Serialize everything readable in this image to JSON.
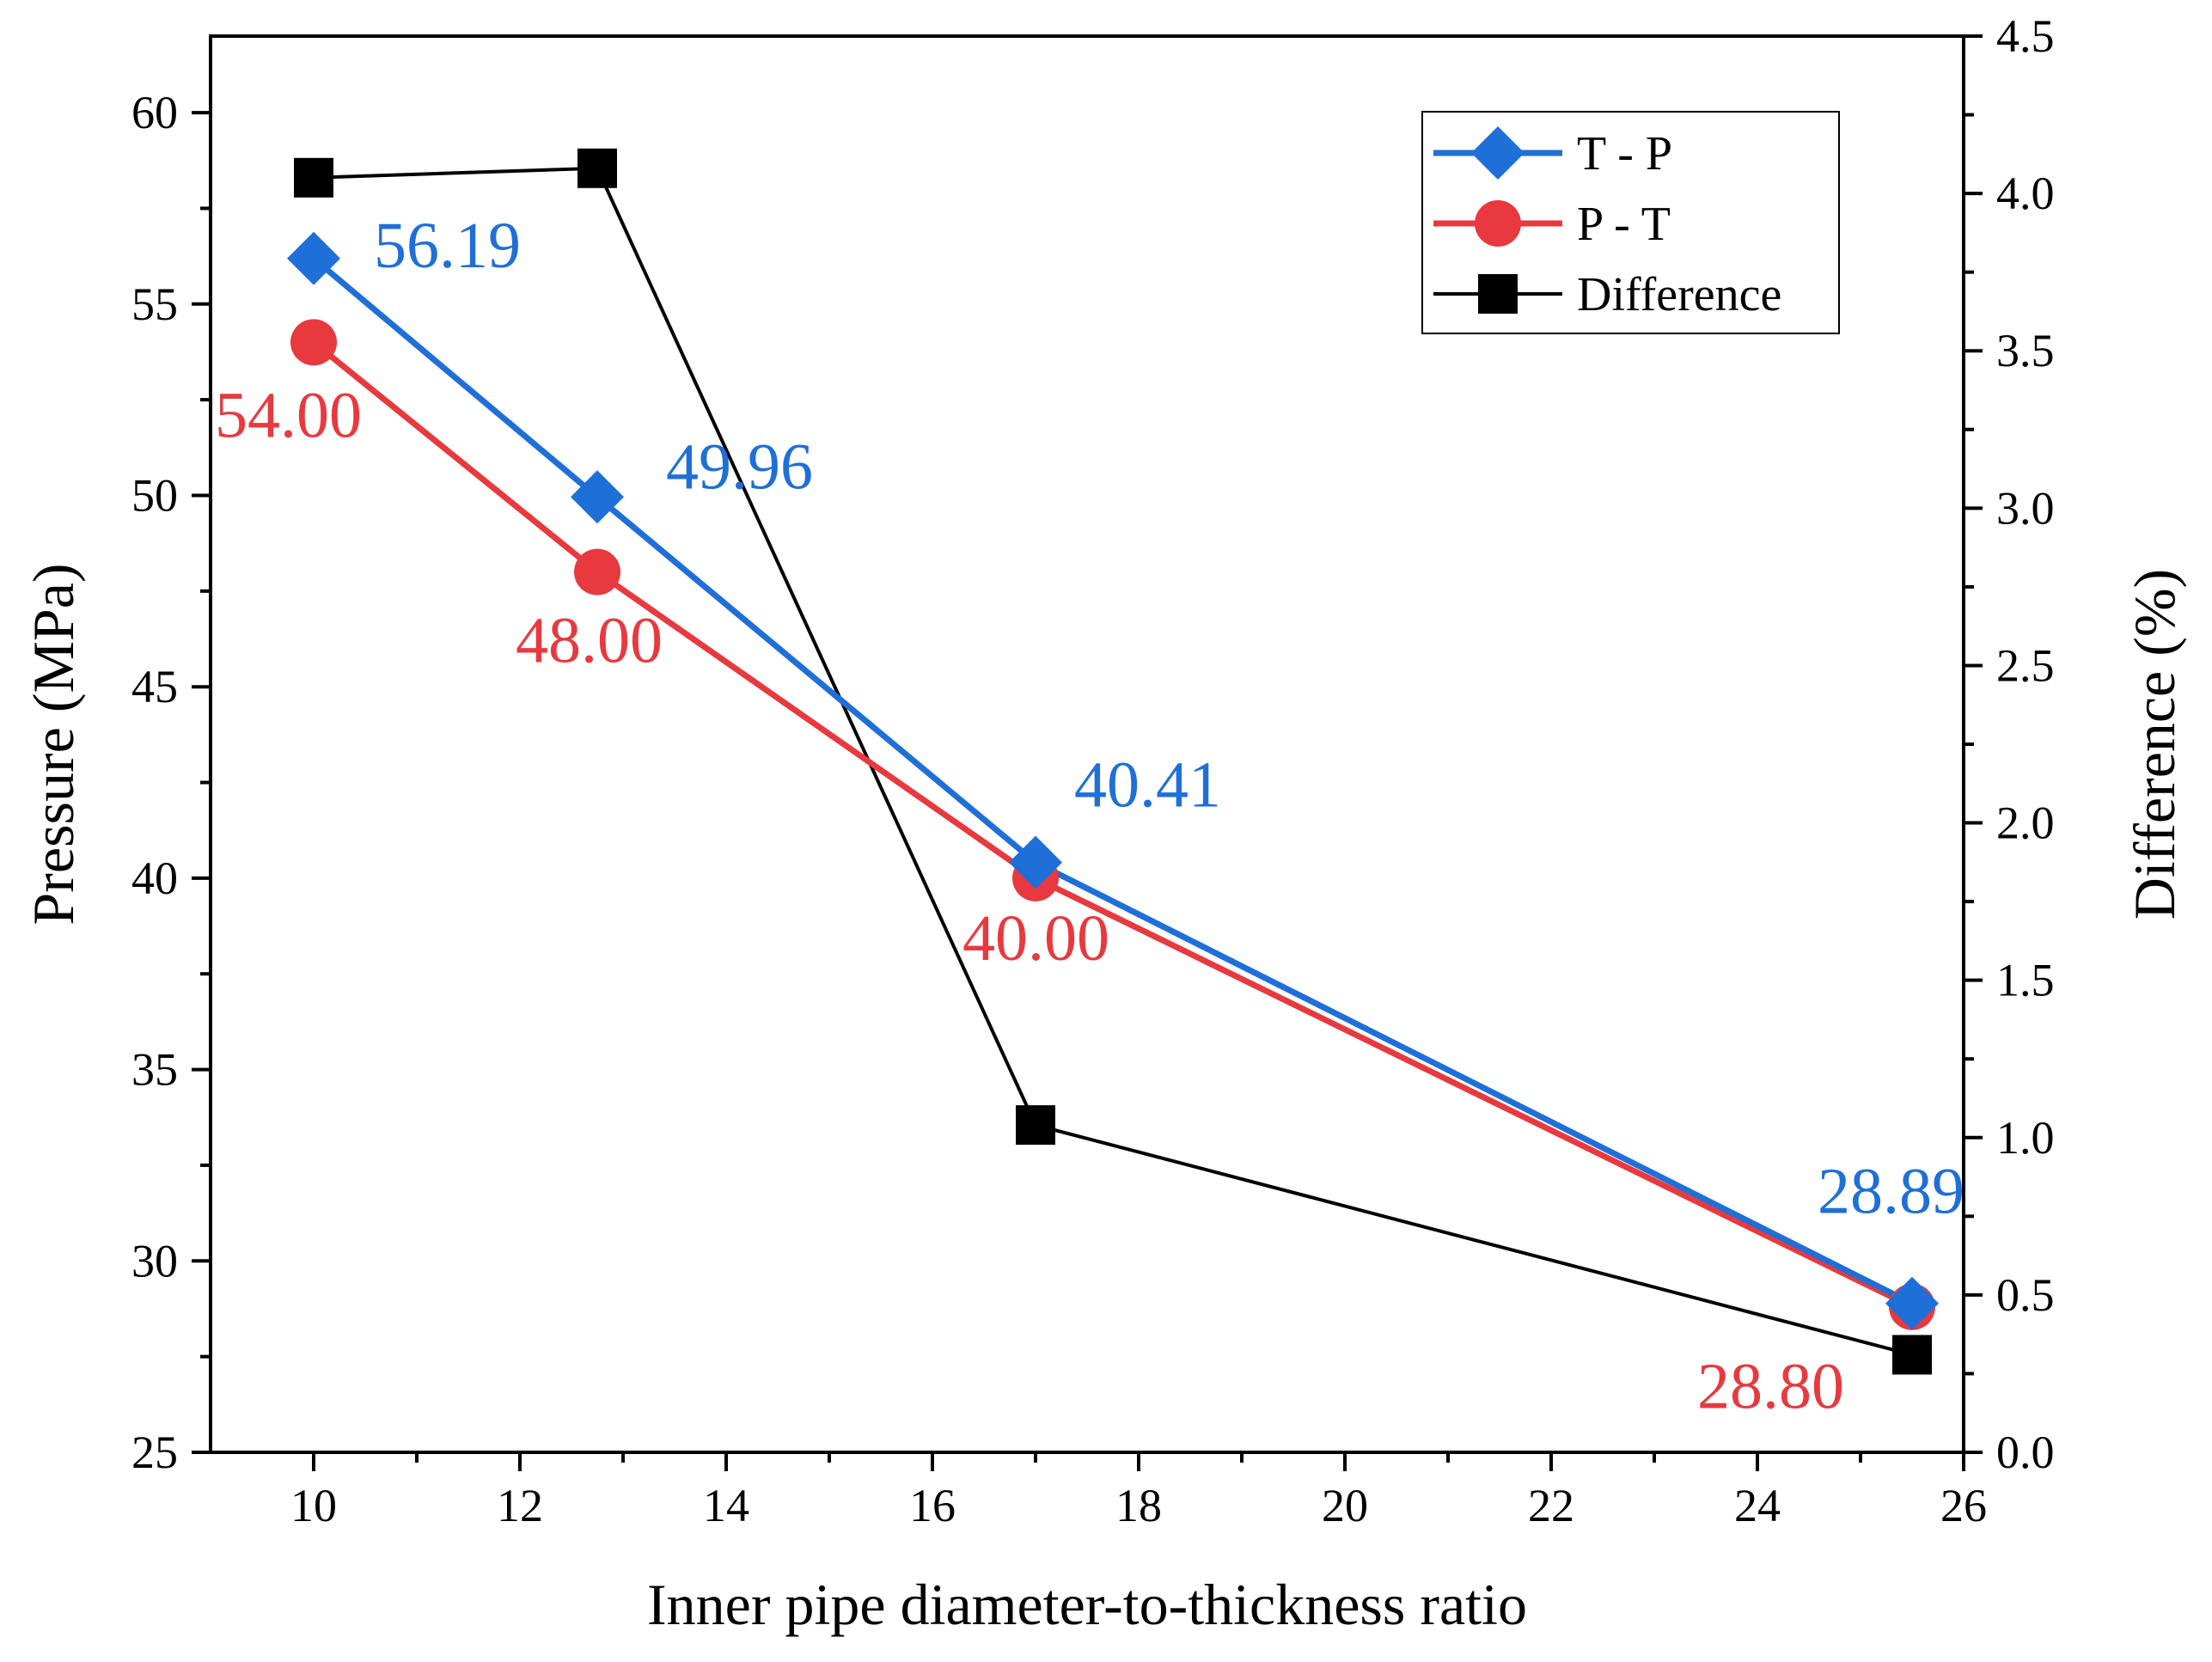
{
  "chart_data": {
    "type": "line",
    "title": "",
    "xlabel": "Inner pipe diameter-to-thickness ratio",
    "ylabel": "Pressure (MPa)",
    "y2label": "Difference (%)",
    "xlim": [
      9,
      26
    ],
    "ylim": [
      25,
      62
    ],
    "y2lim": [
      0,
      4.5
    ],
    "x_ticks": [
      10,
      12,
      14,
      16,
      18,
      20,
      22,
      24,
      26
    ],
    "y_ticks": [
      25,
      30,
      35,
      40,
      45,
      50,
      55,
      60
    ],
    "y2_ticks": [
      "0.0",
      "0.5",
      "1.0",
      "1.5",
      "2.0",
      "2.5",
      "3.0",
      "3.5",
      "4.0",
      "4.5"
    ],
    "grid": false,
    "legend_position": "top-right",
    "series": [
      {
        "name": "T - P",
        "axis": "left",
        "marker": "diamond",
        "color": "#1f6fd8",
        "x": [
          10,
          12.75,
          17,
          25.5
        ],
        "y": [
          56.19,
          49.96,
          40.41,
          28.89
        ],
        "labels": [
          "56.19",
          "49.96",
          "40.41",
          "28.89"
        ]
      },
      {
        "name": "P - T",
        "axis": "left",
        "marker": "circle",
        "color": "#e8393f",
        "x": [
          10,
          12.75,
          17,
          25.5
        ],
        "y": [
          54.0,
          48.0,
          40.0,
          28.8
        ],
        "labels": [
          "54.00",
          "48.00",
          "40.00",
          "28.80"
        ]
      },
      {
        "name": "Difference",
        "axis": "right",
        "marker": "square",
        "color": "#000000",
        "x": [
          10,
          12.75,
          17,
          25.5
        ],
        "y": [
          4.05,
          4.08,
          1.04,
          0.31
        ],
        "labels": []
      }
    ]
  }
}
